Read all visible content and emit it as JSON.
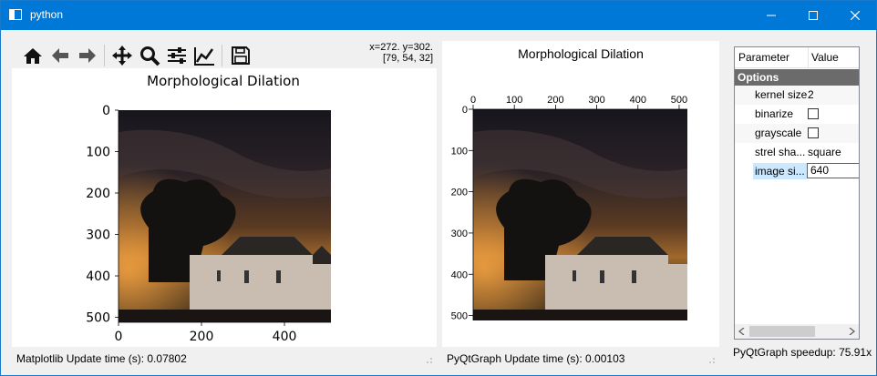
{
  "window": {
    "title": "python"
  },
  "toolbar": {
    "tools": [
      "home-icon",
      "back-icon",
      "forward-icon",
      "pan-icon",
      "zoom-icon",
      "configure-subplots-icon",
      "edit-axis-icon",
      "save-icon"
    ],
    "coord_line1": "x=272. y=302.",
    "coord_line2": "[79, 54, 32]"
  },
  "matplotlib": {
    "title": "Morphological Dilation",
    "yticks": [
      "0",
      "100",
      "200",
      "300",
      "400",
      "500"
    ],
    "xticks": [
      "0",
      "200",
      "400"
    ],
    "status": "Matplotlib Update time (s): 0.07802"
  },
  "pyqtgraph": {
    "title": "Morphological Dilation",
    "xticks": [
      "0",
      "100",
      "200",
      "300",
      "400",
      "500"
    ],
    "yticks": [
      "0",
      "100",
      "200",
      "300",
      "400",
      "500"
    ],
    "status": "PyQtGraph Update time (s): 0.00103"
  },
  "params": {
    "header": {
      "col1": "Parameter",
      "col2": "Value"
    },
    "group": "Options",
    "rows": [
      {
        "key": "kernel size",
        "value": "2"
      },
      {
        "key": "binarize",
        "value": ""
      },
      {
        "key": "grayscale",
        "value": ""
      },
      {
        "key": "strel sha...",
        "value": "square"
      },
      {
        "key": "image si...",
        "value": "640"
      }
    ]
  },
  "speedup": "PyQtGraph speedup: 75.91x",
  "colors": {
    "titlebar": "#0078d7",
    "selected_row": "#cce8ff",
    "group_bg": "#6b6b6b"
  }
}
